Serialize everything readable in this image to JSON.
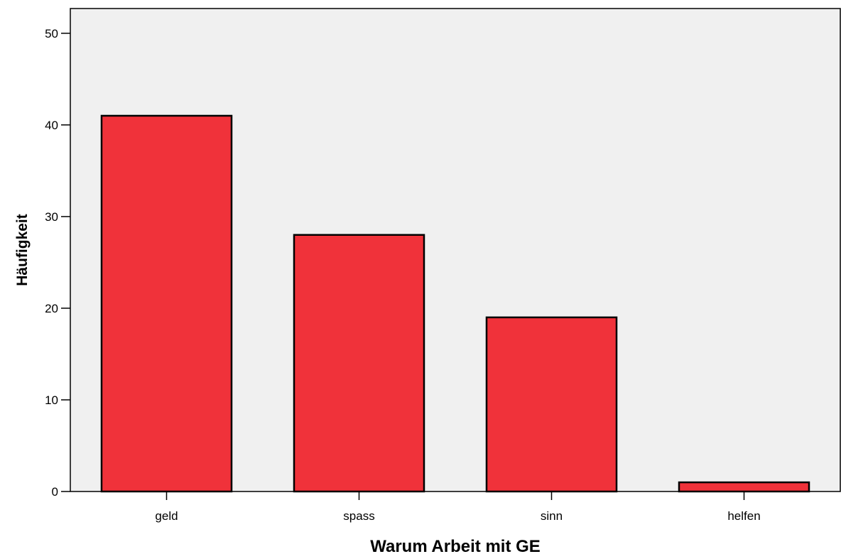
{
  "chart_data": {
    "type": "bar",
    "title": "",
    "xlabel": "Warum Arbeit mit GE",
    "ylabel": "Häufigkeit",
    "categories": [
      "geld",
      "spass",
      "sinn",
      "helfen"
    ],
    "values": [
      41,
      28,
      19,
      1
    ],
    "ylim": [
      0,
      52.7
    ],
    "yticks": [
      0,
      10,
      20,
      30,
      40,
      50
    ],
    "grid": false,
    "legend": "none"
  },
  "colors": {
    "bar_fill": "#f0323a",
    "bar_stroke": "#000000",
    "plot_background": "#f0f0f0",
    "axis": "#000000"
  }
}
